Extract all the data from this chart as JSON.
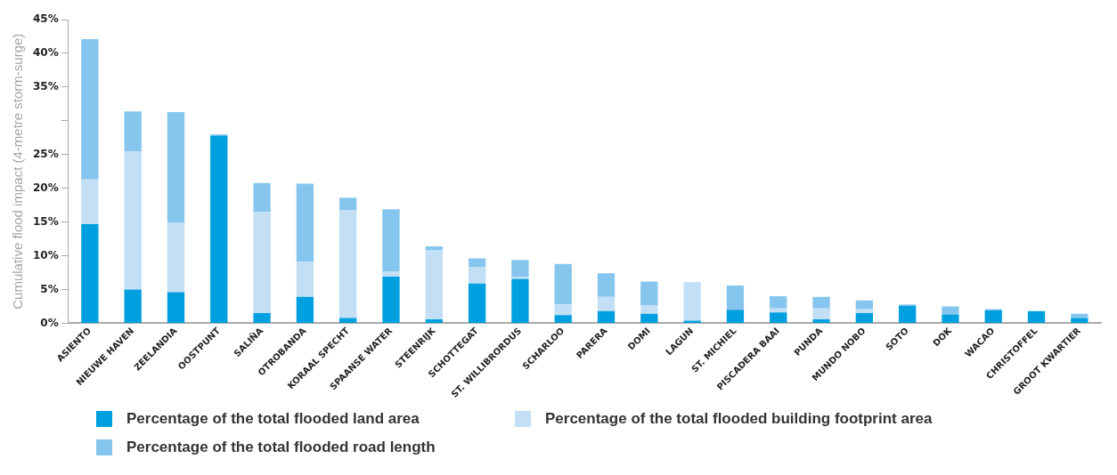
{
  "chart_data": {
    "type": "bar",
    "stacked": true,
    "ylabel": "Cumulative flood impact (4-metre storm-surge)",
    "categories": [
      "ASIENTO",
      "NIEUWE HAVEN",
      "ZEELANDIA",
      "OOSTPUNT",
      "SALIÑA",
      "OTROBANDA",
      "KORAAL SPECHT",
      "SPAANSE WATER",
      "STEENRIJK",
      "SCHOTTEGAT",
      "ST. WILLIBRORDUS",
      "SCHARLOO",
      "PARERA",
      "DOMI",
      "LAGUN",
      "ST. MICHIEL",
      "PISCADERA BAAI",
      "PUNDA",
      "MUNDO NOBO",
      "SOTO",
      "DOK",
      "WACAO",
      "CHRISTOFFEL",
      "GROOT KWARTIER"
    ],
    "series": [
      {
        "name": "Percentage of the total flooded land area",
        "color": "#009fdf",
        "values": [
          14.7,
          5.0,
          4.6,
          27.8,
          1.5,
          3.9,
          0.8,
          6.9,
          0.6,
          5.9,
          6.6,
          1.2,
          1.8,
          1.4,
          0.4,
          2.0,
          1.6,
          0.6,
          1.5,
          2.6,
          1.3,
          1.9,
          1.8,
          0.8
        ]
      },
      {
        "name": "Percentage of the total flooded building footprint area",
        "color": "#c2dff5",
        "values": [
          6.6,
          20.5,
          10.3,
          0,
          15.0,
          5.2,
          16.0,
          0.8,
          10.2,
          2.4,
          0.3,
          1.6,
          2.1,
          1.3,
          5.7,
          0,
          0.6,
          1.6,
          0.6,
          0,
          0,
          0,
          0,
          0
        ]
      },
      {
        "name": "Percentage of the total flooded road length",
        "color": "#86c5ee",
        "values": [
          20.8,
          5.9,
          16.4,
          0.2,
          4.3,
          11.6,
          1.8,
          9.2,
          0.6,
          1.3,
          2.5,
          6.0,
          3.5,
          3.5,
          0,
          3.6,
          1.8,
          1.7,
          1.3,
          0.2,
          1.2,
          0.2,
          0,
          0.6
        ]
      }
    ],
    "ylim": [
      0,
      45
    ],
    "yticks": [
      {
        "value": 0,
        "label": "0%"
      },
      {
        "value": 5,
        "label": "5%"
      },
      {
        "value": 10,
        "label": "10%"
      },
      {
        "value": 15,
        "label": "15%"
      },
      {
        "value": 20,
        "label": "20%"
      },
      {
        "value": 25,
        "label": "25%"
      },
      {
        "value": 30,
        "label": null
      },
      {
        "value": 35,
        "label": "35%"
      },
      {
        "value": 40,
        "label": "40%"
      },
      {
        "value": 45,
        "label": "45%"
      }
    ],
    "grid": false,
    "legend": "bottom"
  }
}
